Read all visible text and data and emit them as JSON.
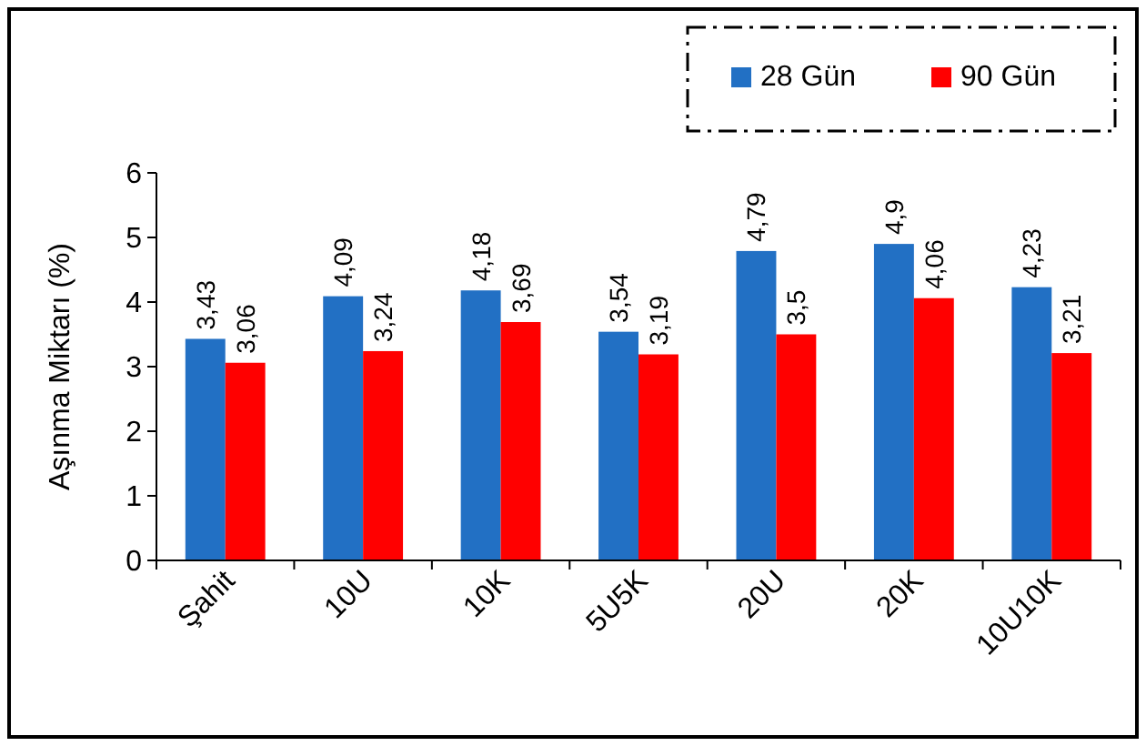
{
  "chart_data": {
    "type": "bar",
    "ylabel": "Aşınma Miktarı (%)",
    "categories": [
      "Şahit",
      "10U",
      "10K",
      "5U5K",
      "20U",
      "20K",
      "10U10K"
    ],
    "series": [
      {
        "name": "28 Gün",
        "color": "#2270c4",
        "values": [
          3.43,
          4.09,
          4.18,
          3.54,
          4.79,
          4.9,
          4.23
        ],
        "value_labels": [
          "3,43",
          "4,09",
          "4,18",
          "3,54",
          "4,79",
          "4,9",
          "4,23"
        ]
      },
      {
        "name": "90 Gün",
        "color": "#ff0000",
        "values": [
          3.06,
          3.24,
          3.69,
          3.19,
          3.5,
          4.06,
          3.21
        ],
        "value_labels": [
          "3,06",
          "3,24",
          "3,69",
          "3,19",
          "3,5",
          "4,06",
          "3,21"
        ]
      }
    ],
    "ylim": [
      0,
      6
    ],
    "yticks": [
      0,
      1,
      2,
      3,
      4,
      5,
      6
    ],
    "grid": false,
    "legend": "top right"
  }
}
